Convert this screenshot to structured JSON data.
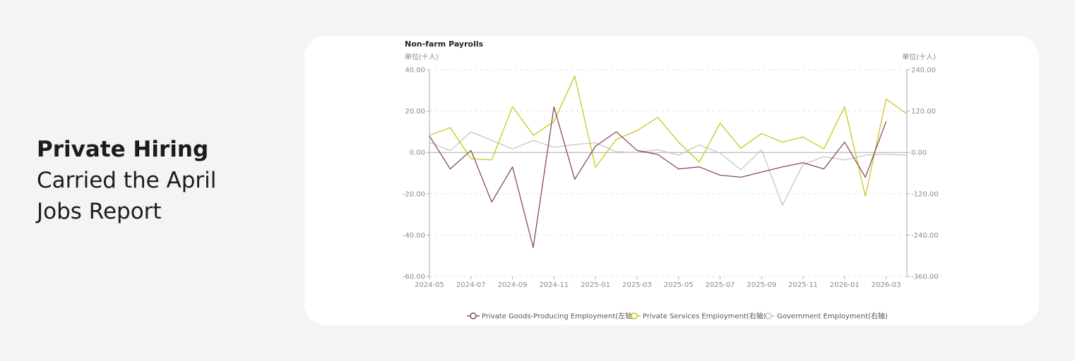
{
  "headline": {
    "line1": "Private Hiring",
    "line2": "Carried the April",
    "line3": "Jobs Report"
  },
  "chart_data": {
    "type": "line",
    "title": "Non-farm Payrolls",
    "left_unit": "单位(十人)",
    "right_unit": "单位(十人)",
    "x": [
      "2024-05",
      "2024-06",
      "2024-07",
      "2024-08",
      "2024-09",
      "2024-10",
      "2024-11",
      "2024-12",
      "2025-01",
      "2025-02",
      "2025-03",
      "2025-04",
      "2025-05",
      "2025-06",
      "2025-07",
      "2025-08",
      "2025-09",
      "2025-10",
      "2025-11",
      "2025-12",
      "2026-01",
      "2026-02",
      "2026-03",
      "2026-04"
    ],
    "x_tick_labels": [
      "2024-05",
      "2024-07",
      "2024-09",
      "2024-11",
      "2025-01",
      "2025-03",
      "2025-05",
      "2025-07",
      "2025-09",
      "2025-11",
      "2026-01",
      "2026-03"
    ],
    "left_axis": {
      "min": -60,
      "max": 40,
      "ticks": [
        "40.00",
        "20.00",
        "0.00",
        "-20.00",
        "-40.00",
        "-60.00"
      ]
    },
    "right_axis": {
      "min": -360,
      "max": 240,
      "ticks": [
        "240.00",
        "120.00",
        "0.00",
        "-120.00",
        "-240.00",
        "-360.00"
      ]
    },
    "grid": true,
    "legend_position": "bottom",
    "series": [
      {
        "name": "Private Goods-Producing Employment(左轴)",
        "axis": "left",
        "color": "#8b4a57",
        "values": [
          8,
          -8,
          1,
          -24,
          -7,
          -46,
          22,
          -13,
          3,
          10,
          1,
          -1,
          -8,
          -7,
          -11,
          -12,
          -9.5,
          -7,
          -5,
          -8,
          5,
          -12,
          15,
          null
        ]
      },
      {
        "name": "Private Services Employment(右轴)",
        "axis": "right",
        "color": "#c8c81e",
        "values": [
          50,
          72,
          -18,
          -22,
          133,
          50,
          90,
          222,
          -43,
          38,
          63,
          102,
          30,
          -28,
          85,
          12,
          55,
          30,
          45,
          10,
          133,
          -127,
          155,
          112
        ]
      },
      {
        "name": "Government Employment(右轴)",
        "axis": "right",
        "color": "#c6c6c6",
        "values": [
          30,
          5,
          60,
          35,
          10,
          35,
          15,
          23,
          28,
          2,
          0,
          8,
          -8,
          22,
          -2,
          -50,
          8,
          -153,
          -35,
          -12,
          -22,
          -8,
          -5,
          -8
        ]
      }
    ]
  }
}
